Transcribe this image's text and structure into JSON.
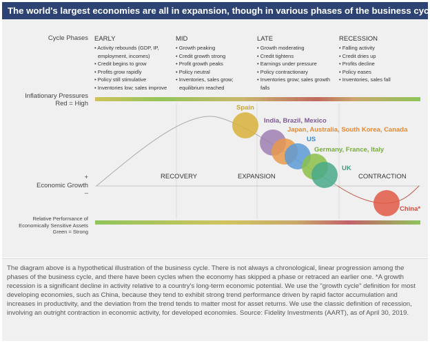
{
  "header": {
    "title": "The world's largest economies are all in expansion, though in various phases of the business cycle."
  },
  "labels": {
    "cycle_phases": "Cycle Phases",
    "inflation_line1": "Inflationary Pressures",
    "inflation_line2": "Red = High",
    "plus": "+",
    "economic_growth": "Economic Growth",
    "minus": "–",
    "relative_line1": "Relative Performance of",
    "relative_line2": "Economically Sensitive Assets",
    "relative_line3": "Green = Strong"
  },
  "phases": [
    {
      "title": "EARLY",
      "items": [
        "Activity rebounds (GDP, IP, employment, incomes)",
        "Credit begins to grow",
        "Profits grow rapidly",
        "Policy still stimulative",
        "Inventories low; sales improve"
      ]
    },
    {
      "title": "MID",
      "items": [
        "Growth peaking",
        "Credit growth strong",
        "Profit growth peaks",
        "Policy neutral",
        "Inventories, sales grow; equilibrium reached"
      ]
    },
    {
      "title": "LATE",
      "items": [
        "Growth moderating",
        "Credit tightens",
        "Earnings under pressure",
        "Policy contractionary",
        "Inventories grow; sales growth falls"
      ]
    },
    {
      "title": "RECESSION",
      "items": [
        "Falling activity",
        "Credit dries up",
        "Profits decline",
        "Policy eases",
        "Inventories, sales fall"
      ]
    }
  ],
  "regions": {
    "recovery": "RECOVERY",
    "expansion": "EXPANSION",
    "contraction": "CONTRACTION"
  },
  "countries": [
    {
      "label": "Spain",
      "color": "#d8b23c",
      "text": "#c9a43a"
    },
    {
      "label": "India, Brazil, Mexico",
      "color": "#9f7fb2",
      "text": "#7d5a92"
    },
    {
      "label": "Japan, Australia, South Korea, Canada",
      "color": "#e8994c",
      "text": "#e08a38"
    },
    {
      "label": "US",
      "color": "#5c9ad6",
      "text": "#3f86cc"
    },
    {
      "label": "Germany, France, Italy",
      "color": "#8cbf4a",
      "text": "#76ad38"
    },
    {
      "label": "UK",
      "color": "#4aa98a",
      "text": "#3f9c7e"
    },
    {
      "label": "China*",
      "color": "#e25a45",
      "text": "#d84a3a"
    }
  ],
  "footer": {
    "text": "The diagram above is a hypothetical illustration of the business cycle. There is not always a chronological, linear progression among the phases of the business cycle, and there have been cycles when the economy has skipped a phase or retraced an earlier one. *A growth recession is a significant decline in activity relative to a country's long-term economic potential. We use the \"growth cycle\" definition for most developing economies, such as China, because they tend to exhibit strong trend performance driven by rapid factor accumulation and increases in productivity, and the deviation from the trend tends to matter most for asset returns. We use the classic definition of recession, involving an outright contraction in economic activity, for developed economies. Source: Fidelity Investments (AART), as of April 30, 2019."
  }
}
